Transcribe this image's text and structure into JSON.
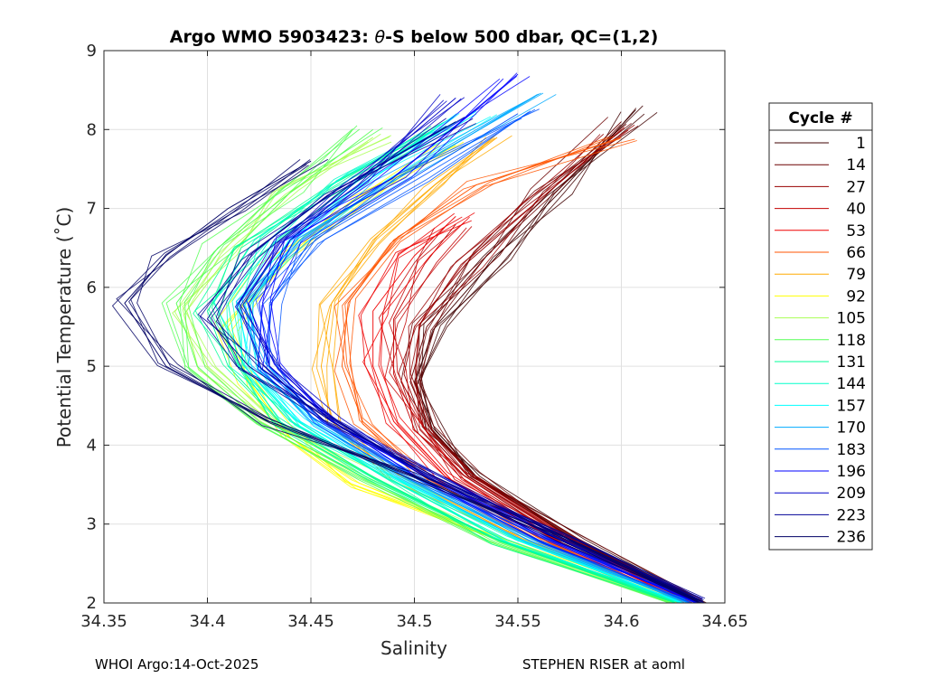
{
  "chart_data": {
    "type": "line",
    "title": "Argo WMO 5903423: θ-S below 500 dbar,  QC=(1,2)",
    "title_parts": {
      "before": "Argo WMO 5903423: ",
      "theta": "θ",
      "after": "-S below 500 dbar,  QC=(1,2)"
    },
    "xlabel": "Salinity",
    "ylabel": "Potential Temperature (˚C)",
    "xlim": [
      34.35,
      34.65
    ],
    "ylim": [
      2,
      9
    ],
    "xticks": [
      34.35,
      34.4,
      34.45,
      34.5,
      34.55,
      34.6,
      34.65
    ],
    "xtick_labels": [
      "34.35",
      "34.4",
      "34.45",
      "34.5",
      "34.55",
      "34.6",
      "34.65"
    ],
    "yticks": [
      2,
      3,
      4,
      5,
      6,
      7,
      8,
      9
    ],
    "ytick_labels": [
      "2",
      "3",
      "4",
      "5",
      "6",
      "7",
      "8",
      "9"
    ],
    "grid": true,
    "legend_title": "Cycle #",
    "legend_position": "outside-right",
    "series": [
      {
        "name": "1",
        "color": "#3f0000",
        "points": [
          [
            34.64,
            2.0
          ],
          [
            34.58,
            2.8
          ],
          [
            34.53,
            3.6
          ],
          [
            34.51,
            4.2
          ],
          [
            34.5,
            4.8
          ],
          [
            34.51,
            5.5
          ],
          [
            34.54,
            6.4
          ],
          [
            34.57,
            7.2
          ],
          [
            34.607,
            8.25
          ]
        ]
      },
      {
        "name": "14",
        "color": "#6b0000",
        "points": [
          [
            34.638,
            2.0
          ],
          [
            34.578,
            2.8
          ],
          [
            34.528,
            3.6
          ],
          [
            34.508,
            4.2
          ],
          [
            34.498,
            4.8
          ],
          [
            34.506,
            5.5
          ],
          [
            34.535,
            6.4
          ],
          [
            34.565,
            7.2
          ],
          [
            34.6,
            8.1
          ]
        ]
      },
      {
        "name": "27",
        "color": "#970000",
        "points": [
          [
            34.636,
            2.0
          ],
          [
            34.575,
            2.8
          ],
          [
            34.526,
            3.6
          ],
          [
            34.505,
            4.2
          ],
          [
            34.495,
            4.9
          ],
          [
            34.5,
            5.5
          ],
          [
            34.525,
            6.3
          ],
          [
            34.56,
            7.1
          ],
          [
            34.6,
            8.0
          ]
        ]
      },
      {
        "name": "40",
        "color": "#c30000",
        "points": [
          [
            34.634,
            2.0
          ],
          [
            34.572,
            2.8
          ],
          [
            34.522,
            3.6
          ],
          [
            34.5,
            4.2
          ],
          [
            34.49,
            4.9
          ],
          [
            34.49,
            5.6
          ],
          [
            34.505,
            6.3
          ],
          [
            34.52,
            6.8
          ]
        ]
      },
      {
        "name": "53",
        "color": "#ef0000",
        "points": [
          [
            34.632,
            2.0
          ],
          [
            34.568,
            2.8
          ],
          [
            34.515,
            3.6
          ],
          [
            34.49,
            4.3
          ],
          [
            34.48,
            5.0
          ],
          [
            34.48,
            5.7
          ],
          [
            34.5,
            6.4
          ],
          [
            34.52,
            6.9
          ]
        ]
      },
      {
        "name": "66",
        "color": "#ff5500",
        "points": [
          [
            34.63,
            2.0
          ],
          [
            34.56,
            2.8
          ],
          [
            34.505,
            3.6
          ],
          [
            34.475,
            4.3
          ],
          [
            34.465,
            5.0
          ],
          [
            34.468,
            5.8
          ],
          [
            34.49,
            6.6
          ],
          [
            34.53,
            7.3
          ],
          [
            34.6,
            7.9
          ]
        ]
      },
      {
        "name": "79",
        "color": "#ffaa00",
        "points": [
          [
            34.628,
            2.0
          ],
          [
            34.55,
            2.8
          ],
          [
            34.49,
            3.6
          ],
          [
            34.46,
            4.3
          ],
          [
            34.455,
            5.0
          ],
          [
            34.46,
            5.8
          ],
          [
            34.48,
            6.6
          ],
          [
            34.51,
            7.3
          ],
          [
            34.54,
            7.9
          ]
        ]
      },
      {
        "name": "92",
        "color": "#ffff00",
        "points": [
          [
            34.626,
            2.0
          ],
          [
            34.53,
            2.9
          ],
          [
            34.47,
            3.5
          ],
          [
            34.44,
            4.1
          ],
          [
            34.42,
            4.8
          ],
          [
            34.41,
            5.5
          ],
          [
            34.43,
            6.3
          ],
          [
            34.47,
            7.1
          ],
          [
            34.52,
            7.8
          ]
        ]
      },
      {
        "name": "105",
        "color": "#aaff55",
        "points": [
          [
            34.625,
            2.0
          ],
          [
            34.54,
            2.8
          ],
          [
            34.48,
            3.6
          ],
          [
            34.43,
            4.3
          ],
          [
            34.4,
            5.0
          ],
          [
            34.39,
            5.7
          ],
          [
            34.41,
            6.4
          ],
          [
            34.44,
            7.2
          ],
          [
            34.48,
            7.9
          ]
        ]
      },
      {
        "name": "118",
        "color": "#55ff55",
        "points": [
          [
            34.624,
            2.0
          ],
          [
            34.535,
            2.8
          ],
          [
            34.475,
            3.6
          ],
          [
            34.425,
            4.3
          ],
          [
            34.395,
            5.0
          ],
          [
            34.385,
            5.8
          ],
          [
            34.405,
            6.5
          ],
          [
            34.44,
            7.2
          ],
          [
            34.48,
            8.0
          ]
        ]
      },
      {
        "name": "131",
        "color": "#00ff99",
        "points": [
          [
            34.626,
            2.0
          ],
          [
            34.54,
            2.8
          ],
          [
            34.48,
            3.6
          ],
          [
            34.435,
            4.3
          ],
          [
            34.41,
            5.0
          ],
          [
            34.4,
            5.7
          ],
          [
            34.42,
            6.5
          ],
          [
            34.46,
            7.3
          ],
          [
            34.51,
            8.0
          ]
        ]
      },
      {
        "name": "144",
        "color": "#00ffcc",
        "points": [
          [
            34.628,
            2.0
          ],
          [
            34.545,
            2.8
          ],
          [
            34.485,
            3.6
          ],
          [
            34.44,
            4.3
          ],
          [
            34.415,
            5.0
          ],
          [
            34.41,
            5.8
          ],
          [
            34.43,
            6.6
          ],
          [
            34.47,
            7.4
          ],
          [
            34.52,
            8.1
          ]
        ]
      },
      {
        "name": "157",
        "color": "#00ffff",
        "points": [
          [
            34.63,
            2.0
          ],
          [
            34.55,
            2.8
          ],
          [
            34.49,
            3.6
          ],
          [
            34.445,
            4.3
          ],
          [
            34.42,
            5.0
          ],
          [
            34.415,
            5.8
          ],
          [
            34.44,
            6.6
          ],
          [
            34.48,
            7.4
          ],
          [
            34.53,
            8.2
          ]
        ]
      },
      {
        "name": "170",
        "color": "#00aaff",
        "points": [
          [
            34.632,
            2.0
          ],
          [
            34.555,
            2.8
          ],
          [
            34.495,
            3.6
          ],
          [
            34.45,
            4.3
          ],
          [
            34.425,
            5.0
          ],
          [
            34.42,
            5.8
          ],
          [
            34.445,
            6.6
          ],
          [
            34.49,
            7.4
          ],
          [
            34.56,
            8.45
          ]
        ]
      },
      {
        "name": "183",
        "color": "#0055ff",
        "points": [
          [
            34.634,
            2.0
          ],
          [
            34.56,
            2.8
          ],
          [
            34.5,
            3.6
          ],
          [
            34.455,
            4.3
          ],
          [
            34.43,
            5.0
          ],
          [
            34.43,
            5.8
          ],
          [
            34.45,
            6.6
          ],
          [
            34.5,
            7.4
          ],
          [
            34.55,
            8.2
          ]
        ]
      },
      {
        "name": "196",
        "color": "#0000ff",
        "points": [
          [
            34.636,
            2.0
          ],
          [
            34.565,
            2.8
          ],
          [
            34.505,
            3.6
          ],
          [
            34.46,
            4.3
          ],
          [
            34.43,
            5.0
          ],
          [
            34.425,
            5.8
          ],
          [
            34.44,
            6.6
          ],
          [
            34.49,
            7.4
          ],
          [
            34.55,
            8.7
          ]
        ]
      },
      {
        "name": "209",
        "color": "#0000c8",
        "points": [
          [
            34.638,
            2.0
          ],
          [
            34.57,
            2.8
          ],
          [
            34.51,
            3.6
          ],
          [
            34.46,
            4.3
          ],
          [
            34.43,
            5.0
          ],
          [
            34.42,
            5.8
          ],
          [
            34.44,
            6.6
          ],
          [
            34.47,
            7.3
          ],
          [
            34.52,
            8.4
          ]
        ]
      },
      {
        "name": "223",
        "color": "#000096",
        "points": [
          [
            34.64,
            2.0
          ],
          [
            34.575,
            2.8
          ],
          [
            34.51,
            3.6
          ],
          [
            34.46,
            4.3
          ],
          [
            34.42,
            5.0
          ],
          [
            34.4,
            5.6
          ],
          [
            34.42,
            6.4
          ],
          [
            34.46,
            7.2
          ],
          [
            34.52,
            8.1
          ]
        ]
      },
      {
        "name": "236",
        "color": "#000064",
        "points": [
          [
            34.638,
            2.0
          ],
          [
            34.57,
            2.8
          ],
          [
            34.5,
            3.6
          ],
          [
            34.43,
            4.3
          ],
          [
            34.38,
            5.0
          ],
          [
            34.36,
            5.8
          ],
          [
            34.38,
            6.4
          ],
          [
            34.41,
            7.0
          ],
          [
            34.45,
            7.6
          ]
        ]
      }
    ]
  },
  "footer": {
    "left": "WHOI Argo:14-Oct-2025",
    "right": "STEPHEN RISER at aoml"
  }
}
